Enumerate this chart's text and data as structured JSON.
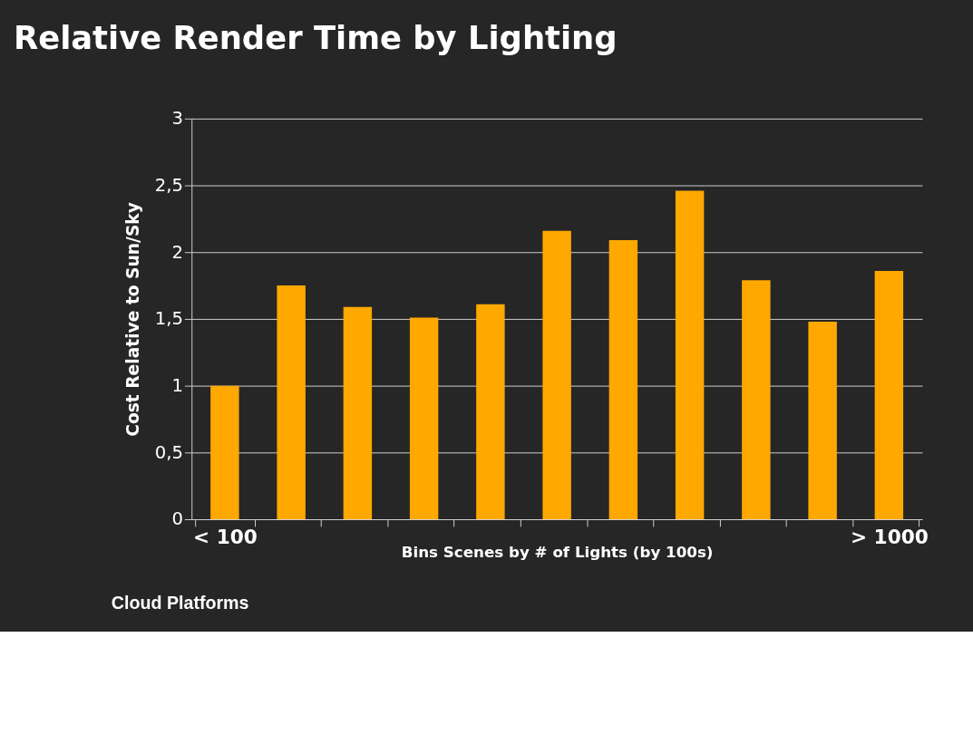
{
  "chart_data": {
    "type": "bar",
    "title": "Relative Render Time by Lighting",
    "xlabel": "Bins Scenes by # of Lights (by 100s)",
    "ylabel": "Cost Relative to Sun/Sky",
    "categories": [
      "< 100",
      null,
      null,
      null,
      null,
      null,
      null,
      null,
      null,
      null,
      "> 1000"
    ],
    "values": [
      1.0,
      1.75,
      1.59,
      1.51,
      1.61,
      2.16,
      2.09,
      2.46,
      1.79,
      1.48,
      1.86
    ],
    "color": "#ffa800",
    "ylim": [
      0,
      3
    ],
    "yticks": [
      0,
      {
        "value": 0.5,
        "label": "0,5"
      },
      1,
      {
        "value": 1.5,
        "label": "1,5"
      },
      2,
      {
        "value": 2.5,
        "label": "2,5"
      },
      3
    ],
    "grid": "y",
    "annotations": [
      "Cloud Platforms"
    ]
  }
}
